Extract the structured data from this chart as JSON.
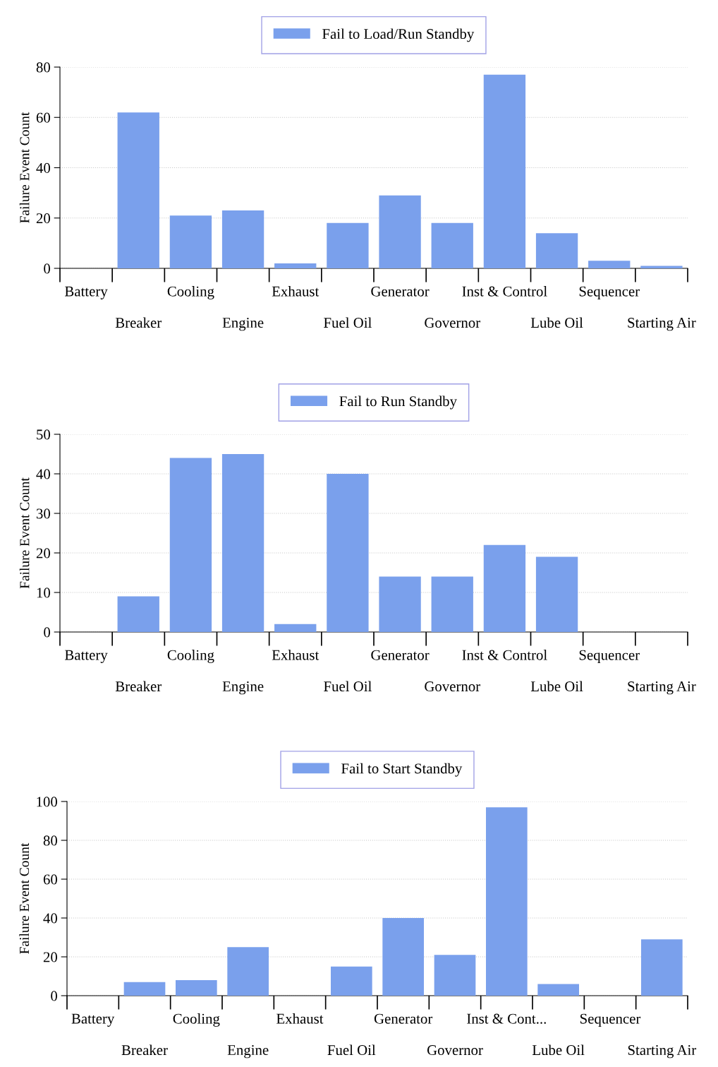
{
  "chart_data": [
    {
      "type": "bar",
      "categories": [
        "Battery",
        "Breaker",
        "Cooling",
        "Engine",
        "Exhaust",
        "Fuel Oil",
        "Generator",
        "Governor",
        "Inst & Control",
        "Lube Oil",
        "Sequencer",
        "Starting Air"
      ],
      "ylabel": "Failure Event Count",
      "ylim": [
        0,
        80
      ],
      "yticks": [
        0,
        20,
        40,
        60,
        80
      ],
      "grid": "y",
      "legend": "top",
      "series": [
        {
          "name": "Fail to Load/Run Standby",
          "color": "#7aa0ec",
          "values": [
            0,
            62,
            21,
            23,
            2,
            18,
            29,
            18,
            77,
            14,
            3,
            1
          ]
        }
      ]
    },
    {
      "type": "bar",
      "categories": [
        "Battery",
        "Breaker",
        "Cooling",
        "Engine",
        "Exhaust",
        "Fuel Oil",
        "Generator",
        "Governor",
        "Inst & Control",
        "Lube Oil",
        "Sequencer",
        "Starting Air"
      ],
      "ylabel": "Failure Event Count",
      "ylim": [
        0,
        50
      ],
      "yticks": [
        0,
        10,
        20,
        30,
        40,
        50
      ],
      "grid": "y",
      "legend": "top",
      "series": [
        {
          "name": "Fail to Run Standby",
          "color": "#7aa0ec",
          "values": [
            0,
            9,
            44,
            45,
            2,
            40,
            14,
            14,
            22,
            19,
            0,
            0
          ]
        }
      ]
    },
    {
      "type": "bar",
      "categories": [
        "Battery",
        "Breaker",
        "Cooling",
        "Engine",
        "Exhaust",
        "Fuel Oil",
        "Generator",
        "Governor",
        "Inst & Cont...",
        "Lube Oil",
        "Sequencer",
        "Starting Air"
      ],
      "ylabel": "Failure Event Count",
      "ylim": [
        0,
        100
      ],
      "yticks": [
        0,
        20,
        40,
        60,
        80,
        100
      ],
      "grid": "y",
      "legend": "top",
      "series": [
        {
          "name": "Fail to Start Standby",
          "color": "#7aa0ec",
          "values": [
            0,
            7,
            8,
            25,
            0,
            15,
            40,
            21,
            97,
            6,
            0,
            29
          ]
        }
      ]
    }
  ]
}
